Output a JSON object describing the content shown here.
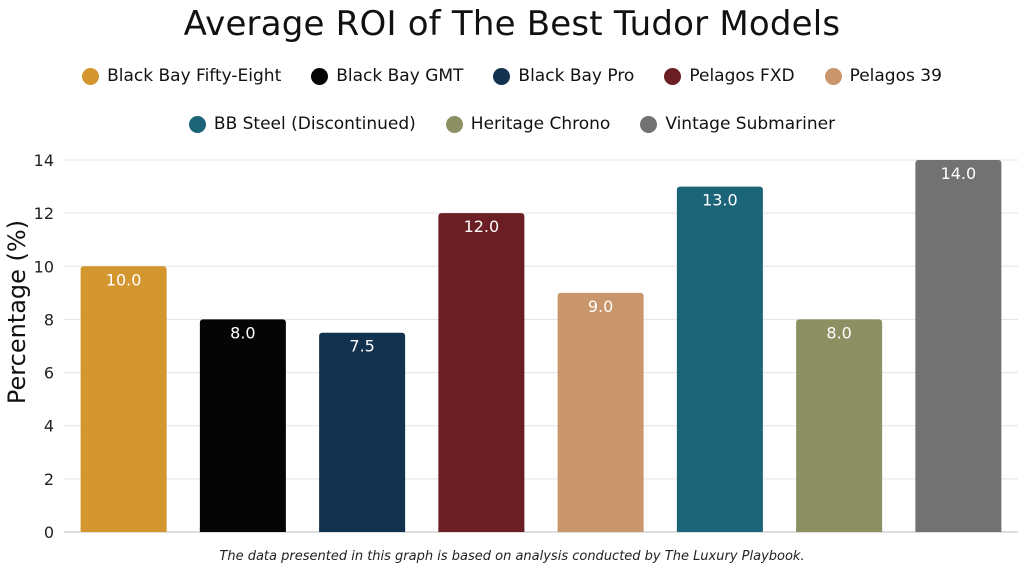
{
  "chart_data": {
    "type": "bar",
    "title": "Average ROI of The Best Tudor Models",
    "ylabel": "Percentage (%)",
    "xlabel": "",
    "ylim": [
      0,
      14
    ],
    "yticks": [
      0,
      2,
      4,
      6,
      8,
      10,
      12,
      14
    ],
    "grid": true,
    "legend_position": "top",
    "categories": [
      "Black Bay Fifty-Eight",
      "Black Bay GMT",
      "Black Bay Pro",
      "Pelagos FXD",
      "Pelagos 39",
      "BB Steel (Discontinued)",
      "Heritage Chrono",
      "Vintage Submariner"
    ],
    "values": [
      10.0,
      8.0,
      7.5,
      12.0,
      9.0,
      13.0,
      8.0,
      14.0
    ],
    "value_labels": [
      "10.0",
      "8.0",
      "7.5",
      "12.0",
      "9.0",
      "13.0",
      "8.0",
      "14.0"
    ],
    "colors": [
      "#D4962F",
      "#050505",
      "#13324F",
      "#6B1F24",
      "#C8966A",
      "#1C6478",
      "#8C9063",
      "#727272"
    ]
  },
  "legend_row1": [
    {
      "label": "Black Bay Fifty-Eight",
      "color": "#D4962F"
    },
    {
      "label": "Black Bay GMT",
      "color": "#050505"
    },
    {
      "label": "Black Bay Pro",
      "color": "#13324F"
    },
    {
      "label": "Pelagos FXD",
      "color": "#6B1F24"
    },
    {
      "label": "Pelagos 39",
      "color": "#C8966A"
    }
  ],
  "legend_row2": [
    {
      "label": "BB Steel (Discontinued)",
      "color": "#1C6478"
    },
    {
      "label": "Heritage Chrono",
      "color": "#8C9063"
    },
    {
      "label": "Vintage Submariner",
      "color": "#727272"
    }
  ],
  "footnote": "The data presented in this graph is based on analysis conducted by The Luxury Playbook."
}
